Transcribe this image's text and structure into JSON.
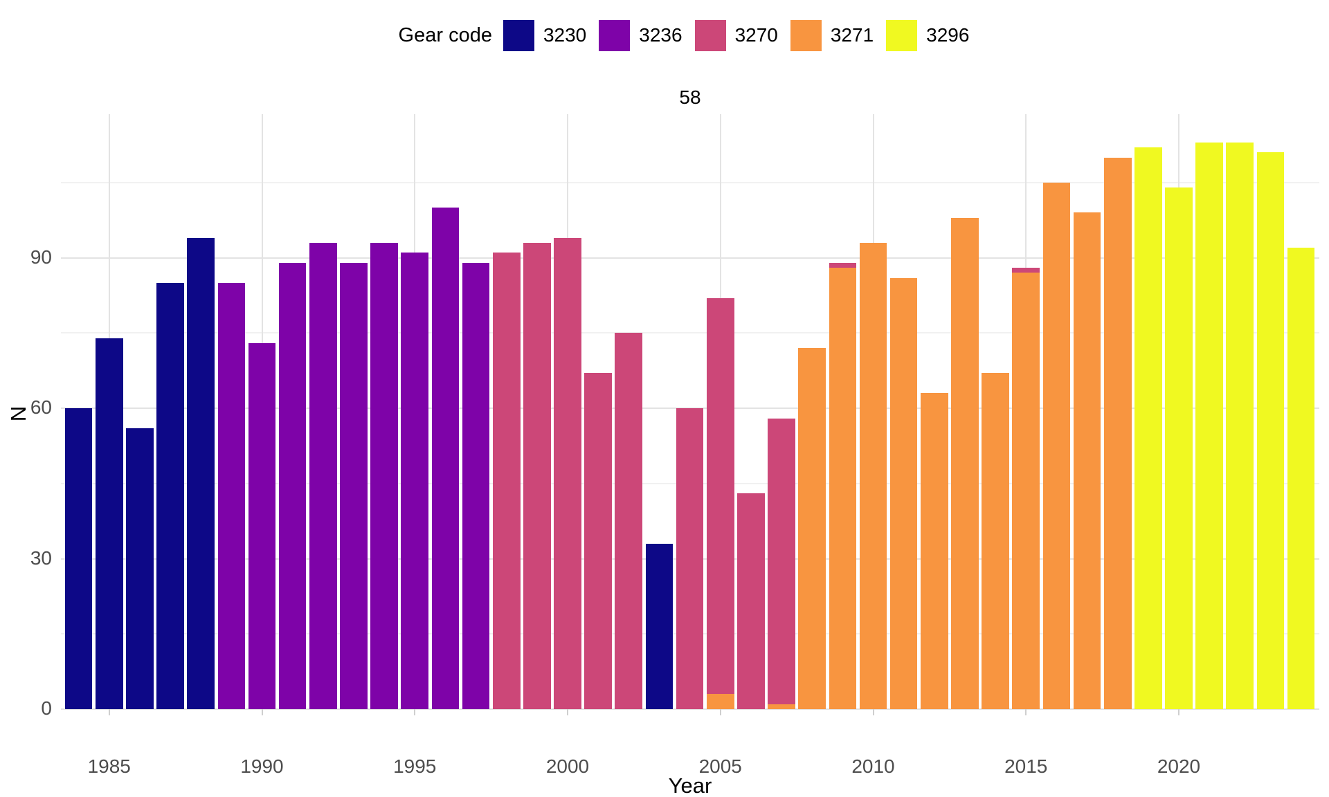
{
  "title": "58",
  "legend": {
    "title": "Gear code",
    "items": [
      {
        "label": "3230",
        "color": "#0d0887"
      },
      {
        "label": "3236",
        "color": "#7e03a8"
      },
      {
        "label": "3270",
        "color": "#cc4778"
      },
      {
        "label": "3271",
        "color": "#f89540"
      },
      {
        "label": "3296",
        "color": "#f0f921"
      }
    ]
  },
  "colors": {
    "3230": "#0d0887",
    "3236": "#7e03a8",
    "3270": "#cc4778",
    "3271": "#f89540",
    "3296": "#f0f921"
  },
  "chart_data": {
    "type": "bar",
    "stacked": true,
    "title": "58",
    "xlabel": "Year",
    "ylabel": "N",
    "legend_title": "Gear code",
    "legend_position": "top",
    "grid": "major-and-minor-horizontal, major-vertical",
    "x_ticks": [
      1985,
      1990,
      1995,
      2000,
      2005,
      2010,
      2015,
      2020
    ],
    "y_ticks": [
      0,
      30,
      60,
      90
    ],
    "y_minor_ticks": [
      15,
      45,
      75,
      105
    ],
    "xlim": [
      1983.4,
      2024.6
    ],
    "ylim": [
      0,
      118.65
    ],
    "series_codes": [
      "3230",
      "3236",
      "3270",
      "3271",
      "3296"
    ],
    "bars": [
      {
        "year": 1984,
        "segments": [
          {
            "code": "3230",
            "value": 60
          }
        ]
      },
      {
        "year": 1985,
        "segments": [
          {
            "code": "3230",
            "value": 74
          }
        ]
      },
      {
        "year": 1986,
        "segments": [
          {
            "code": "3230",
            "value": 56
          }
        ]
      },
      {
        "year": 1987,
        "segments": [
          {
            "code": "3230",
            "value": 85
          }
        ]
      },
      {
        "year": 1988,
        "segments": [
          {
            "code": "3230",
            "value": 94
          }
        ]
      },
      {
        "year": 1989,
        "segments": [
          {
            "code": "3236",
            "value": 85
          }
        ]
      },
      {
        "year": 1990,
        "segments": [
          {
            "code": "3236",
            "value": 73
          }
        ]
      },
      {
        "year": 1991,
        "segments": [
          {
            "code": "3236",
            "value": 89
          }
        ]
      },
      {
        "year": 1992,
        "segments": [
          {
            "code": "3236",
            "value": 93
          }
        ]
      },
      {
        "year": 1993,
        "segments": [
          {
            "code": "3236",
            "value": 89
          }
        ]
      },
      {
        "year": 1994,
        "segments": [
          {
            "code": "3236",
            "value": 93
          }
        ]
      },
      {
        "year": 1995,
        "segments": [
          {
            "code": "3236",
            "value": 91
          }
        ]
      },
      {
        "year": 1996,
        "segments": [
          {
            "code": "3236",
            "value": 100
          }
        ]
      },
      {
        "year": 1997,
        "segments": [
          {
            "code": "3236",
            "value": 89
          }
        ]
      },
      {
        "year": 1998,
        "segments": [
          {
            "code": "3270",
            "value": 91
          }
        ]
      },
      {
        "year": 1999,
        "segments": [
          {
            "code": "3270",
            "value": 93
          }
        ]
      },
      {
        "year": 2000,
        "segments": [
          {
            "code": "3270",
            "value": 94
          }
        ]
      },
      {
        "year": 2001,
        "segments": [
          {
            "code": "3270",
            "value": 67
          }
        ]
      },
      {
        "year": 2002,
        "segments": [
          {
            "code": "3270",
            "value": 75
          }
        ]
      },
      {
        "year": 2003,
        "segments": [
          {
            "code": "3230",
            "value": 33
          }
        ]
      },
      {
        "year": 2004,
        "segments": [
          {
            "code": "3270",
            "value": 60
          }
        ]
      },
      {
        "year": 2005,
        "segments": [
          {
            "code": "3271",
            "value": 3
          },
          {
            "code": "3270",
            "value": 79
          }
        ]
      },
      {
        "year": 2006,
        "segments": [
          {
            "code": "3270",
            "value": 43
          }
        ]
      },
      {
        "year": 2007,
        "segments": [
          {
            "code": "3271",
            "value": 1
          },
          {
            "code": "3270",
            "value": 57
          }
        ]
      },
      {
        "year": 2008,
        "segments": [
          {
            "code": "3271",
            "value": 72
          }
        ]
      },
      {
        "year": 2009,
        "segments": [
          {
            "code": "3271",
            "value": 88
          },
          {
            "code": "3270",
            "value": 1
          }
        ]
      },
      {
        "year": 2010,
        "segments": [
          {
            "code": "3271",
            "value": 93
          }
        ]
      },
      {
        "year": 2011,
        "segments": [
          {
            "code": "3271",
            "value": 86
          }
        ]
      },
      {
        "year": 2012,
        "segments": [
          {
            "code": "3271",
            "value": 63
          }
        ]
      },
      {
        "year": 2013,
        "segments": [
          {
            "code": "3271",
            "value": 98
          }
        ]
      },
      {
        "year": 2014,
        "segments": [
          {
            "code": "3271",
            "value": 67
          }
        ]
      },
      {
        "year": 2015,
        "segments": [
          {
            "code": "3271",
            "value": 87
          },
          {
            "code": "3270",
            "value": 1
          }
        ]
      },
      {
        "year": 2016,
        "segments": [
          {
            "code": "3271",
            "value": 105
          }
        ]
      },
      {
        "year": 2017,
        "segments": [
          {
            "code": "3271",
            "value": 99
          }
        ]
      },
      {
        "year": 2018,
        "segments": [
          {
            "code": "3271",
            "value": 110
          }
        ]
      },
      {
        "year": 2019,
        "segments": [
          {
            "code": "3296",
            "value": 112
          }
        ]
      },
      {
        "year": 2020,
        "segments": [
          {
            "code": "3296",
            "value": 104
          }
        ]
      },
      {
        "year": 2021,
        "segments": [
          {
            "code": "3296",
            "value": 113
          }
        ]
      },
      {
        "year": 2022,
        "segments": [
          {
            "code": "3296",
            "value": 113
          }
        ]
      },
      {
        "year": 2023,
        "segments": [
          {
            "code": "3296",
            "value": 111
          }
        ]
      },
      {
        "year": 2024,
        "segments": [
          {
            "code": "3296",
            "value": 92
          }
        ]
      }
    ]
  }
}
